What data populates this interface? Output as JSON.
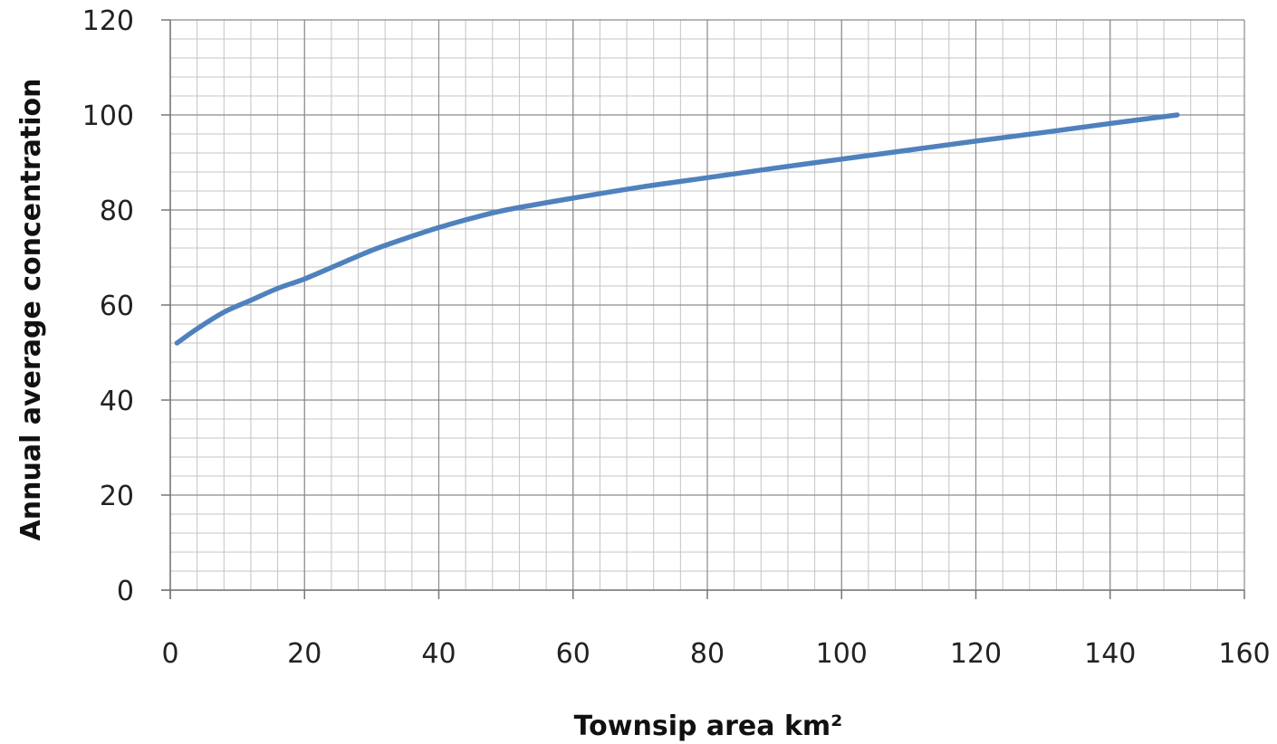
{
  "chart_data": {
    "type": "line",
    "title": "",
    "xlabel": "Townsip area km²",
    "ylabel": "Annual average concentration",
    "xlim": [
      0,
      160
    ],
    "ylim": [
      0,
      120
    ],
    "x_ticks": [
      0,
      20,
      40,
      60,
      80,
      100,
      120,
      140,
      160
    ],
    "y_ticks": [
      0,
      20,
      40,
      60,
      80,
      100,
      120
    ],
    "grid": true,
    "minor_grid": {
      "x_step": 4,
      "y_step": 4
    },
    "legend": "none",
    "line_color": "#4f81bd",
    "series": [
      {
        "values": [
          {
            "x": 1,
            "y": 52
          },
          {
            "x": 4,
            "y": 55
          },
          {
            "x": 8,
            "y": 58.5
          },
          {
            "x": 12,
            "y": 61
          },
          {
            "x": 16,
            "y": 63.5
          },
          {
            "x": 20,
            "y": 65.5
          },
          {
            "x": 25,
            "y": 68.5
          },
          {
            "x": 30,
            "y": 71.5
          },
          {
            "x": 35,
            "y": 74
          },
          {
            "x": 40,
            "y": 76.3
          },
          {
            "x": 45,
            "y": 78.3
          },
          {
            "x": 50,
            "y": 80
          },
          {
            "x": 60,
            "y": 82.5
          },
          {
            "x": 70,
            "y": 84.8
          },
          {
            "x": 80,
            "y": 86.8
          },
          {
            "x": 90,
            "y": 88.8
          },
          {
            "x": 100,
            "y": 90.7
          },
          {
            "x": 110,
            "y": 92.6
          },
          {
            "x": 120,
            "y": 94.5
          },
          {
            "x": 130,
            "y": 96.3
          },
          {
            "x": 140,
            "y": 98.2
          },
          {
            "x": 150,
            "y": 100
          }
        ]
      }
    ]
  }
}
